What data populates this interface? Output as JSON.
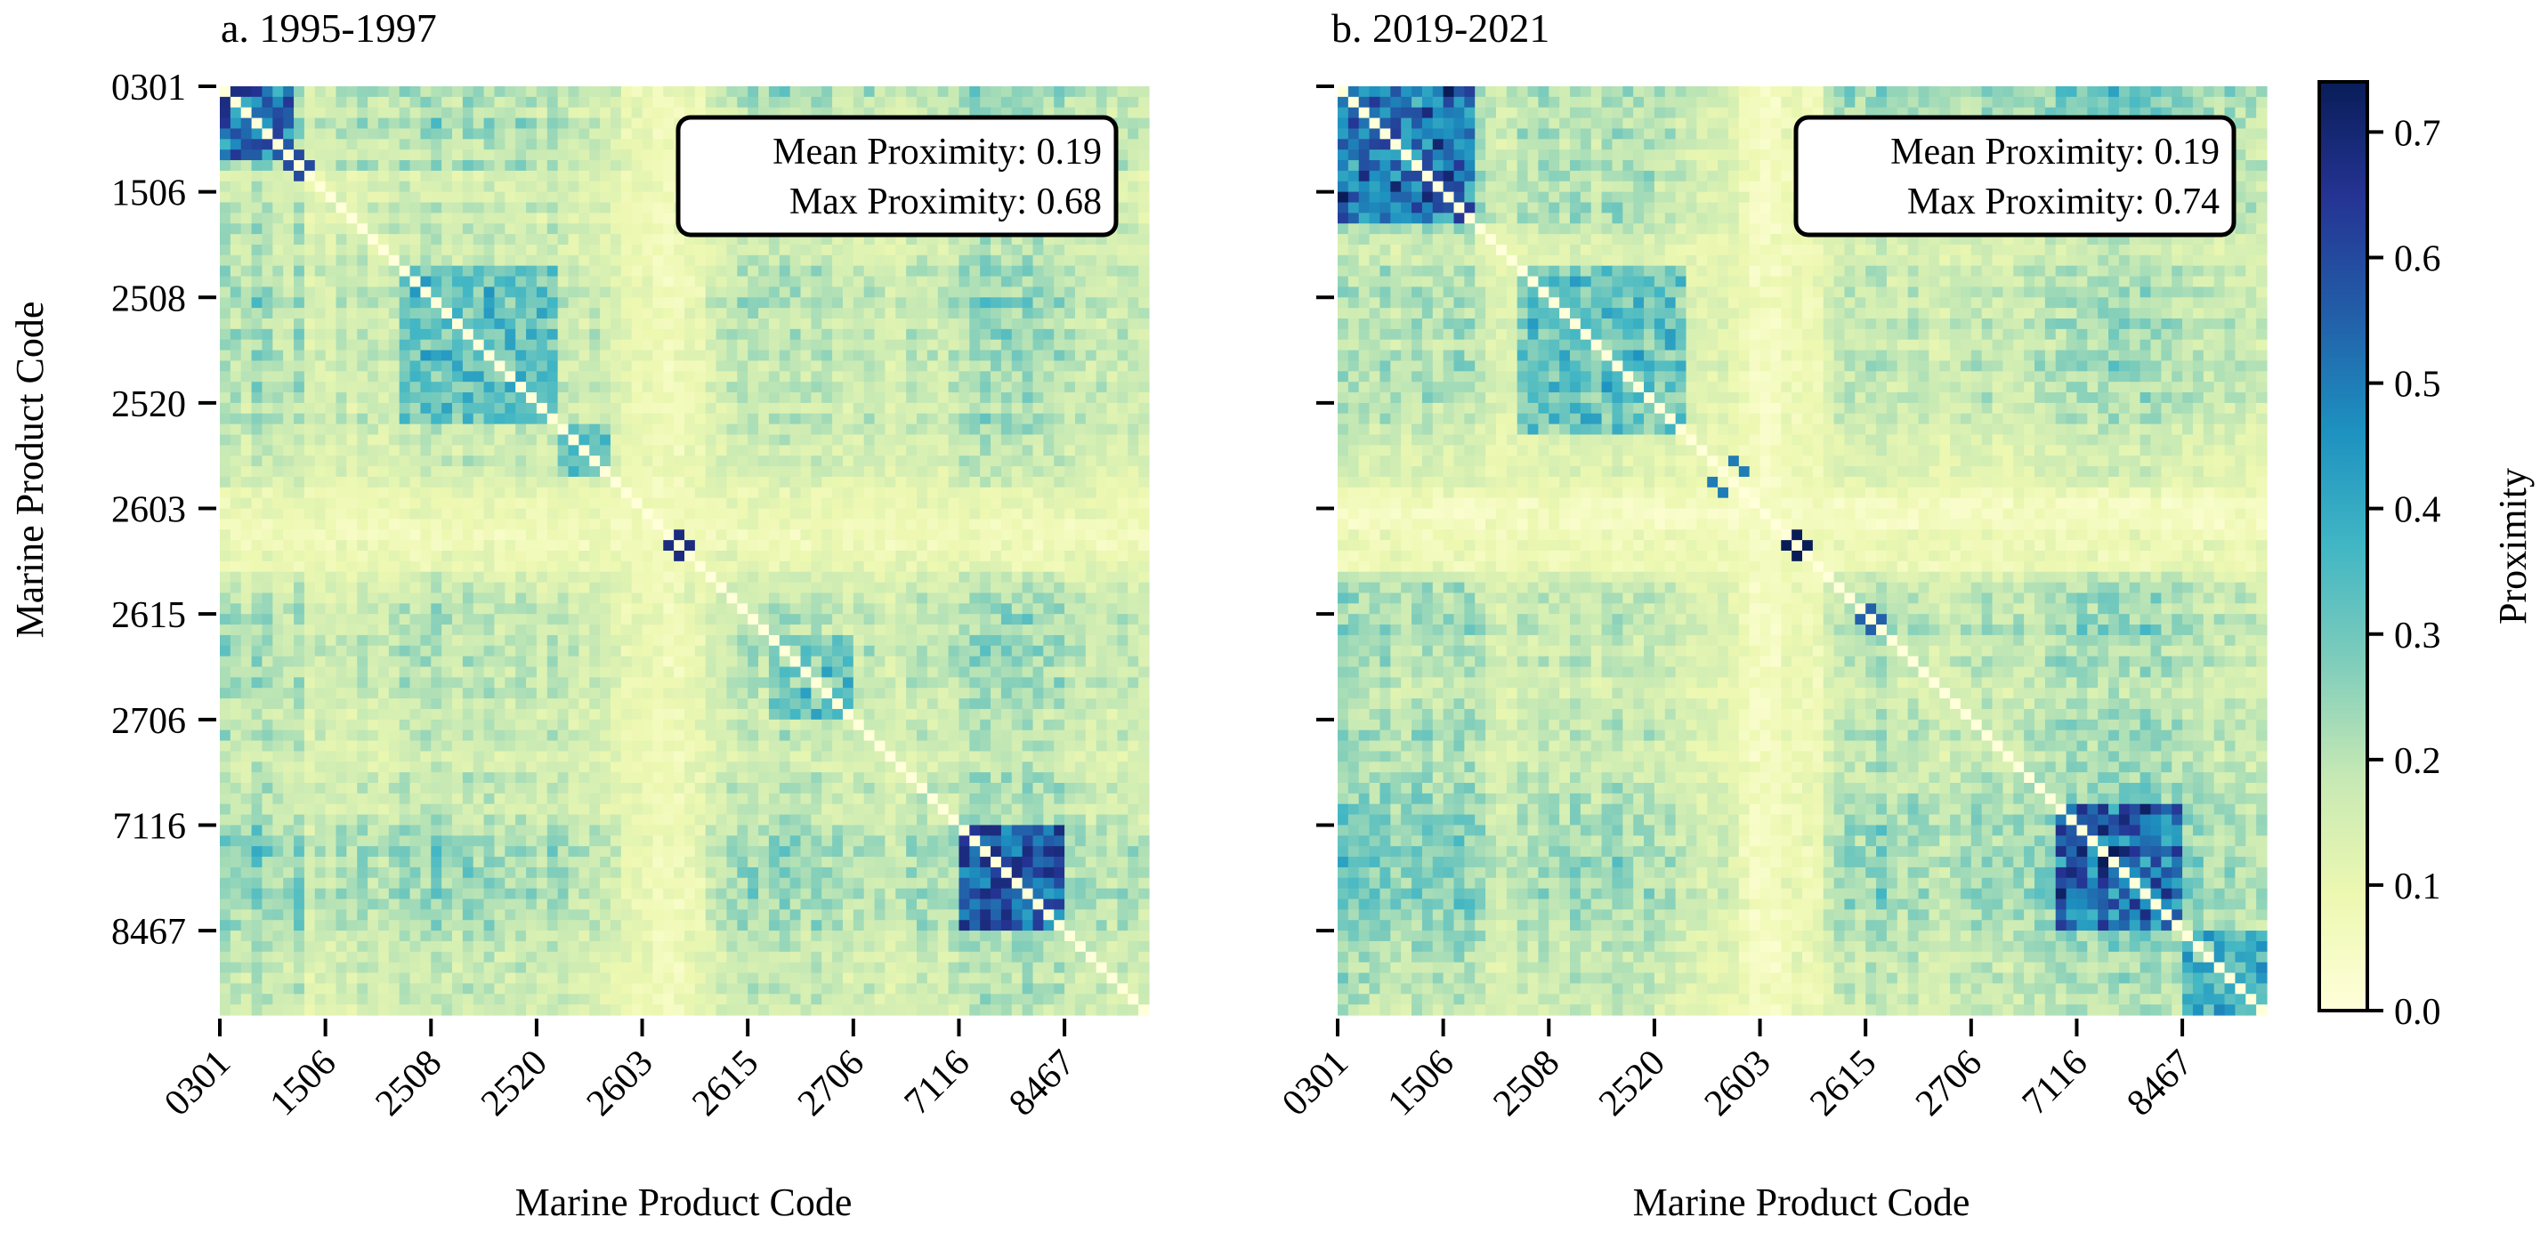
{
  "chart_data": {
    "type": "heatmap",
    "matrix_size": 88,
    "colorbar": {
      "label": "Proximity",
      "colormap": "YlGnBu",
      "vmin": 0.0,
      "vmax": 0.74,
      "ticks": [
        0.0,
        0.1,
        0.2,
        0.3,
        0.4,
        0.5,
        0.6,
        0.7
      ],
      "tick_labels": [
        "0.0",
        "0.1",
        "0.2",
        "0.3",
        "0.4",
        "0.5",
        "0.6",
        "0.7"
      ]
    },
    "tick_labels": [
      "0301",
      "1506",
      "2508",
      "2520",
      "2603",
      "2615",
      "2706",
      "7116",
      "8467"
    ],
    "tick_index": [
      0,
      10,
      20,
      30,
      40,
      50,
      60,
      70,
      80
    ],
    "panels": [
      {
        "title": "a. 1995-1997",
        "xlabel": "Marine Product Code",
        "ylabel": "Marine Product Code",
        "stats": [
          "Mean Proximity: 0.19",
          "Max Proximity: 0.68"
        ],
        "mean": 0.19,
        "max": 0.68,
        "clusters": [
          {
            "from": 0,
            "to": 7,
            "value": 0.56
          },
          {
            "from": 17,
            "to": 32,
            "value": 0.34
          },
          {
            "from": 32,
            "to": 37,
            "value": 0.3
          },
          {
            "from": 52,
            "to": 60,
            "value": 0.32
          },
          {
            "from": 70,
            "to": 80,
            "value": 0.62
          }
        ],
        "hotspots": [
          {
            "i": 43,
            "j": 43,
            "value": 0.68
          },
          {
            "i": 7,
            "j": 7,
            "value": 0.6
          }
        ],
        "sparse_rows": [
          {
            "from": 38,
            "to": 46,
            "value": 0.08
          },
          {
            "from": 41,
            "to": 44,
            "value": 0.05
          }
        ],
        "row_strength": [
          0.42,
          0.36,
          0.3,
          0.45,
          0.38,
          0.32,
          0.28,
          0.4,
          0.2,
          0.26,
          0.22,
          0.3,
          0.24,
          0.32,
          0.28,
          0.25,
          0.3,
          0.34,
          0.3,
          0.36,
          0.4,
          0.34,
          0.28,
          0.38,
          0.32,
          0.36,
          0.3,
          0.28,
          0.34,
          0.32,
          0.26,
          0.34,
          0.3,
          0.26,
          0.24,
          0.28,
          0.22,
          0.2,
          0.16,
          0.14,
          0.12,
          0.1,
          0.12,
          0.14,
          0.18,
          0.2,
          0.22,
          0.26,
          0.3,
          0.34,
          0.36,
          0.3,
          0.34,
          0.38,
          0.34,
          0.3,
          0.36,
          0.32,
          0.3,
          0.26,
          0.28,
          0.32,
          0.26,
          0.22,
          0.24,
          0.3,
          0.34,
          0.3,
          0.26,
          0.32,
          0.4,
          0.44,
          0.46,
          0.42,
          0.44,
          0.4,
          0.46,
          0.42,
          0.38,
          0.4,
          0.3,
          0.32,
          0.28,
          0.3,
          0.26,
          0.3,
          0.28,
          0.26
        ]
      },
      {
        "title": "b. 2019-2021",
        "xlabel": "Marine Product Code",
        "ylabel": "",
        "stats": [
          "Mean Proximity: 0.19",
          "Max Proximity: 0.74"
        ],
        "mean": 0.19,
        "max": 0.74,
        "clusters": [
          {
            "from": 0,
            "to": 13,
            "value": 0.55
          },
          {
            "from": 17,
            "to": 33,
            "value": 0.34
          },
          {
            "from": 68,
            "to": 80,
            "value": 0.58
          },
          {
            "from": 80,
            "to": 88,
            "value": 0.4
          }
        ],
        "hotspots": [
          {
            "i": 43,
            "j": 43,
            "value": 0.74
          },
          {
            "i": 36,
            "j": 37,
            "value": 0.5
          },
          {
            "i": 50,
            "j": 50,
            "value": 0.55
          }
        ],
        "sparse_rows": [
          {
            "from": 38,
            "to": 46,
            "value": 0.06
          },
          {
            "from": 39,
            "to": 42,
            "value": 0.03
          }
        ],
        "row_strength": [
          0.46,
          0.42,
          0.4,
          0.38,
          0.44,
          0.36,
          0.34,
          0.4,
          0.42,
          0.36,
          0.38,
          0.44,
          0.4,
          0.34,
          0.24,
          0.2,
          0.22,
          0.3,
          0.26,
          0.32,
          0.3,
          0.28,
          0.34,
          0.3,
          0.26,
          0.32,
          0.36,
          0.3,
          0.28,
          0.32,
          0.26,
          0.28,
          0.22,
          0.2,
          0.18,
          0.16,
          0.18,
          0.14,
          0.1,
          0.08,
          0.08,
          0.1,
          0.12,
          0.14,
          0.12,
          0.16,
          0.22,
          0.3,
          0.34,
          0.3,
          0.36,
          0.4,
          0.3,
          0.28,
          0.34,
          0.3,
          0.26,
          0.24,
          0.28,
          0.3,
          0.34,
          0.36,
          0.3,
          0.28,
          0.32,
          0.34,
          0.36,
          0.38,
          0.4,
          0.42,
          0.44,
          0.42,
          0.46,
          0.48,
          0.44,
          0.42,
          0.46,
          0.44,
          0.4,
          0.38,
          0.36,
          0.34,
          0.32,
          0.3,
          0.34,
          0.3,
          0.28,
          0.26
        ]
      }
    ]
  }
}
